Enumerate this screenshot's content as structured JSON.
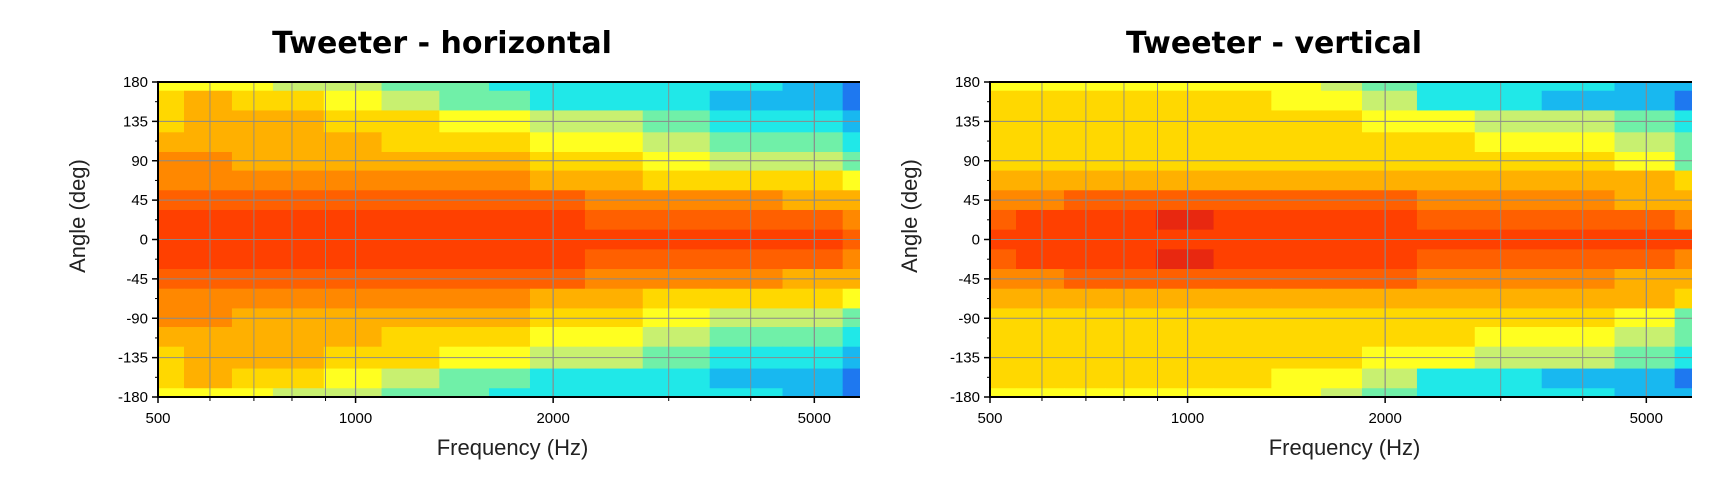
{
  "chart_data": [
    {
      "type": "heatmap",
      "title": "Tweeter - horizontal",
      "xlabel": "Frequency (Hz)",
      "ylabel": "Angle (deg)",
      "xscale": "log",
      "xlim": [
        500,
        6100
      ],
      "ylim": [
        -180,
        180
      ],
      "xticks": [
        500,
        1000,
        2000,
        5000
      ],
      "yticks": [
        180,
        135,
        90,
        45,
        0,
        -45,
        -90,
        -135,
        -180
      ],
      "grid": true,
      "colormap": "jet",
      "levels": [
        "#2020c0",
        "#1e78f0",
        "#18b8f0",
        "#20e8e8",
        "#70f0a8",
        "#c8f070",
        "#ffff20",
        "#ffd800",
        "#ffb000",
        "#ff8800",
        "#ff6000",
        "#ff4000",
        "#e82810"
      ],
      "x": [
        500,
        600,
        700,
        800,
        1000,
        1200,
        1500,
        1700,
        2000,
        2500,
        3000,
        4000,
        5000,
        6100
      ],
      "y": [
        180,
        160,
        135,
        110,
        90,
        67.5,
        45,
        22.5,
        0,
        -22.5,
        -45,
        -67.5,
        -90,
        -110,
        -135,
        -160,
        -180
      ],
      "z": [
        [
          6,
          6,
          6,
          5,
          5,
          4,
          4,
          3,
          3,
          3,
          3,
          3,
          2,
          1
        ],
        [
          7,
          8,
          7,
          7,
          6,
          5,
          4,
          4,
          3,
          3,
          3,
          2,
          2,
          1
        ],
        [
          7,
          8,
          8,
          8,
          7,
          7,
          6,
          6,
          5,
          5,
          4,
          3,
          3,
          2
        ],
        [
          8,
          8,
          8,
          8,
          8,
          7,
          7,
          7,
          6,
          6,
          5,
          4,
          4,
          3
        ],
        [
          9,
          9,
          8,
          8,
          8,
          8,
          8,
          8,
          7,
          7,
          6,
          5,
          5,
          4
        ],
        [
          9,
          9,
          9,
          9,
          9,
          9,
          9,
          9,
          8,
          8,
          7,
          7,
          7,
          6
        ],
        [
          10,
          10,
          10,
          10,
          10,
          10,
          10,
          10,
          10,
          9,
          9,
          9,
          8,
          8
        ],
        [
          11,
          11,
          11,
          11,
          11,
          11,
          11,
          11,
          11,
          10,
          10,
          10,
          10,
          9
        ],
        [
          11,
          11,
          11,
          11,
          11,
          11,
          11,
          11,
          11,
          11,
          11,
          11,
          11,
          10
        ],
        [
          11,
          11,
          11,
          11,
          11,
          11,
          11,
          11,
          11,
          10,
          10,
          10,
          10,
          9
        ],
        [
          10,
          10,
          10,
          10,
          10,
          10,
          10,
          10,
          10,
          9,
          9,
          9,
          8,
          8
        ],
        [
          9,
          9,
          9,
          9,
          9,
          9,
          9,
          9,
          8,
          8,
          7,
          7,
          7,
          6
        ],
        [
          9,
          9,
          8,
          8,
          8,
          8,
          8,
          8,
          7,
          7,
          6,
          5,
          5,
          4
        ],
        [
          8,
          8,
          8,
          8,
          8,
          7,
          7,
          7,
          6,
          6,
          5,
          4,
          4,
          3
        ],
        [
          7,
          8,
          8,
          8,
          7,
          7,
          6,
          6,
          5,
          5,
          4,
          3,
          3,
          2
        ],
        [
          7,
          8,
          7,
          7,
          6,
          5,
          4,
          4,
          3,
          3,
          3,
          2,
          2,
          1
        ],
        [
          6,
          6,
          6,
          5,
          5,
          4,
          4,
          3,
          3,
          3,
          3,
          3,
          2,
          1
        ]
      ]
    },
    {
      "type": "heatmap",
      "title": "Tweeter - vertical",
      "xlabel": "Frequency (Hz)",
      "ylabel": "Angle (deg)",
      "xscale": "log",
      "xlim": [
        500,
        6100
      ],
      "ylim": [
        -180,
        180
      ],
      "xticks": [
        500,
        1000,
        2000,
        5000
      ],
      "yticks": [
        180,
        135,
        90,
        45,
        0,
        -45,
        -90,
        -135,
        -180
      ],
      "grid": true,
      "colormap": "jet",
      "levels": [
        "#2020c0",
        "#1e78f0",
        "#18b8f0",
        "#20e8e8",
        "#70f0a8",
        "#c8f070",
        "#ffff20",
        "#ffd800",
        "#ffb000",
        "#ff8800",
        "#ff6000",
        "#ff4000",
        "#e82810"
      ],
      "x": [
        500,
        600,
        700,
        800,
        1000,
        1200,
        1500,
        1700,
        2000,
        2500,
        3000,
        4000,
        5000,
        6100
      ],
      "y": [
        180,
        160,
        135,
        110,
        90,
        67.5,
        45,
        22.5,
        0,
        -22.5,
        -45,
        -67.5,
        -90,
        -110,
        -135,
        -160,
        -180
      ],
      "z": [
        [
          6,
          6,
          6,
          6,
          6,
          6,
          6,
          5,
          4,
          3,
          3,
          3,
          2,
          2
        ],
        [
          7,
          7,
          7,
          7,
          7,
          7,
          6,
          6,
          5,
          3,
          3,
          2,
          2,
          1
        ],
        [
          7,
          7,
          7,
          7,
          7,
          7,
          7,
          7,
          6,
          6,
          5,
          5,
          4,
          3
        ],
        [
          7,
          7,
          7,
          7,
          7,
          7,
          7,
          7,
          7,
          7,
          6,
          6,
          5,
          4
        ],
        [
          7,
          7,
          7,
          7,
          7,
          7,
          7,
          7,
          7,
          7,
          7,
          7,
          6,
          4
        ],
        [
          8,
          8,
          8,
          8,
          8,
          8,
          8,
          8,
          8,
          8,
          8,
          8,
          8,
          7
        ],
        [
          9,
          9,
          10,
          10,
          10,
          10,
          10,
          10,
          10,
          9,
          9,
          9,
          8,
          8
        ],
        [
          10,
          11,
          11,
          11,
          12,
          11,
          11,
          11,
          11,
          10,
          10,
          10,
          10,
          9
        ],
        [
          11,
          11,
          11,
          11,
          11,
          11,
          11,
          11,
          11,
          11,
          11,
          11,
          11,
          11
        ],
        [
          10,
          11,
          11,
          11,
          12,
          11,
          11,
          11,
          11,
          10,
          10,
          10,
          10,
          9
        ],
        [
          9,
          9,
          10,
          10,
          10,
          10,
          10,
          10,
          10,
          9,
          9,
          9,
          8,
          8
        ],
        [
          8,
          8,
          8,
          8,
          8,
          8,
          8,
          8,
          8,
          8,
          8,
          8,
          8,
          7
        ],
        [
          7,
          7,
          7,
          7,
          7,
          7,
          7,
          7,
          7,
          7,
          7,
          7,
          6,
          4
        ],
        [
          7,
          7,
          7,
          7,
          7,
          7,
          7,
          7,
          7,
          7,
          6,
          6,
          5,
          4
        ],
        [
          7,
          7,
          7,
          7,
          7,
          7,
          7,
          7,
          6,
          6,
          5,
          5,
          4,
          3
        ],
        [
          7,
          7,
          7,
          7,
          7,
          7,
          6,
          6,
          5,
          3,
          3,
          2,
          2,
          1
        ],
        [
          6,
          6,
          6,
          6,
          6,
          6,
          6,
          5,
          4,
          3,
          3,
          3,
          2,
          2
        ]
      ]
    }
  ]
}
